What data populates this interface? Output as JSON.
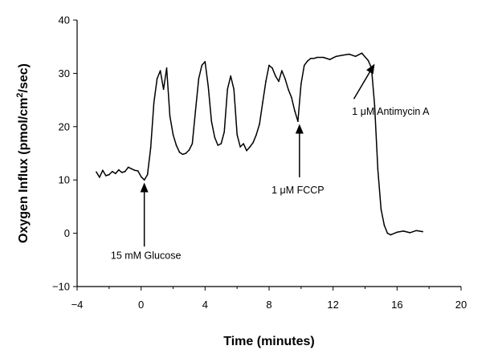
{
  "chart_data": {
    "type": "line",
    "title": "",
    "xlabel": "Time (minutes)",
    "ylabel_main": "Oxygen Influx (pmol/cm",
    "ylabel_sup": "2",
    "ylabel_end": "/sec)",
    "xlim": [
      -4,
      20
    ],
    "ylim": [
      -10,
      40
    ],
    "x_ticks": [
      -4,
      0,
      4,
      8,
      12,
      16,
      20
    ],
    "y_ticks": [
      -10,
      0,
      10,
      20,
      30,
      40
    ],
    "x_tick_labels": [
      "−4",
      "0",
      "4",
      "8",
      "12",
      "16",
      "20"
    ],
    "y_tick_labels": [
      "−10",
      "0",
      "10",
      "20",
      "30",
      "40"
    ],
    "grid": false,
    "series": [
      {
        "x": [
          -2.8,
          -2.6,
          -2.4,
          -2.2,
          -2.0,
          -1.8,
          -1.6,
          -1.4,
          -1.2,
          -1.0,
          -0.8,
          -0.6,
          -0.4,
          -0.2,
          0.0,
          0.2,
          0.4,
          0.6,
          0.8,
          1.0,
          1.2,
          1.4,
          1.6,
          1.8,
          2.0,
          2.2,
          2.4,
          2.6,
          2.8,
          3.0,
          3.2,
          3.4,
          3.6,
          3.8,
          4.0,
          4.2,
          4.4,
          4.6,
          4.8,
          5.0,
          5.2,
          5.4,
          5.6,
          5.8,
          6.0,
          6.2,
          6.4,
          6.6,
          6.8,
          7.0,
          7.2,
          7.4,
          7.6,
          7.8,
          8.0,
          8.2,
          8.4,
          8.6,
          8.8,
          9.0,
          9.2,
          9.4,
          9.6,
          9.8,
          10.0,
          10.2,
          10.4,
          10.6,
          10.8,
          11.0,
          11.4,
          11.8,
          12.2,
          12.6,
          13.0,
          13.4,
          13.8,
          14.2,
          14.4,
          14.6,
          14.8,
          15.0,
          15.2,
          15.4,
          15.6,
          16.0,
          16.4,
          16.8,
          17.2,
          17.6
        ],
        "y": [
          11.5,
          10.5,
          11.8,
          10.8,
          11.0,
          11.6,
          11.2,
          11.9,
          11.4,
          11.6,
          12.4,
          12.1,
          11.8,
          11.7,
          10.6,
          10.0,
          11.0,
          16.0,
          24.5,
          29.0,
          30.5,
          27.0,
          31.0,
          22.0,
          18.5,
          16.5,
          15.2,
          14.8,
          15.0,
          15.6,
          16.8,
          23.0,
          29.0,
          31.5,
          32.2,
          27.5,
          21.0,
          18.0,
          16.5,
          16.8,
          19.0,
          27.0,
          29.5,
          27.0,
          18.5,
          16.2,
          16.8,
          15.5,
          16.2,
          17.0,
          18.5,
          20.5,
          24.5,
          28.5,
          31.5,
          31.0,
          29.5,
          28.5,
          30.5,
          29.0,
          27.0,
          25.5,
          23.0,
          21.0,
          28.0,
          31.5,
          32.3,
          32.8,
          32.8,
          33.0,
          33.0,
          32.6,
          33.2,
          33.4,
          33.6,
          33.2,
          33.8,
          32.4,
          31.0,
          24.0,
          12.0,
          4.5,
          1.5,
          0.0,
          -0.3,
          0.2,
          0.4,
          0.1,
          0.5,
          0.3
        ]
      }
    ],
    "annotations": [
      {
        "label": "15 mM Glucose",
        "x": 0.2,
        "y_tip": 9.5,
        "y_tail": -2.5,
        "text_x": 0.3,
        "text_y": -4.8,
        "text_anchor": "middle"
      },
      {
        "label": "1 μM FCCP",
        "x": 9.9,
        "y_tip": 20.5,
        "y_tail": 10.5,
        "text_x": 9.8,
        "text_y": 7.5,
        "text_anchor": "middle"
      },
      {
        "label": "1 μM Antimycin A",
        "x_tip": 14.6,
        "y_tip": 31.8,
        "x_tail": 13.3,
        "y_tail": 25.2,
        "text_x": 15.6,
        "text_y": 22.2,
        "text_anchor": "middle",
        "diagonal": true
      }
    ]
  }
}
